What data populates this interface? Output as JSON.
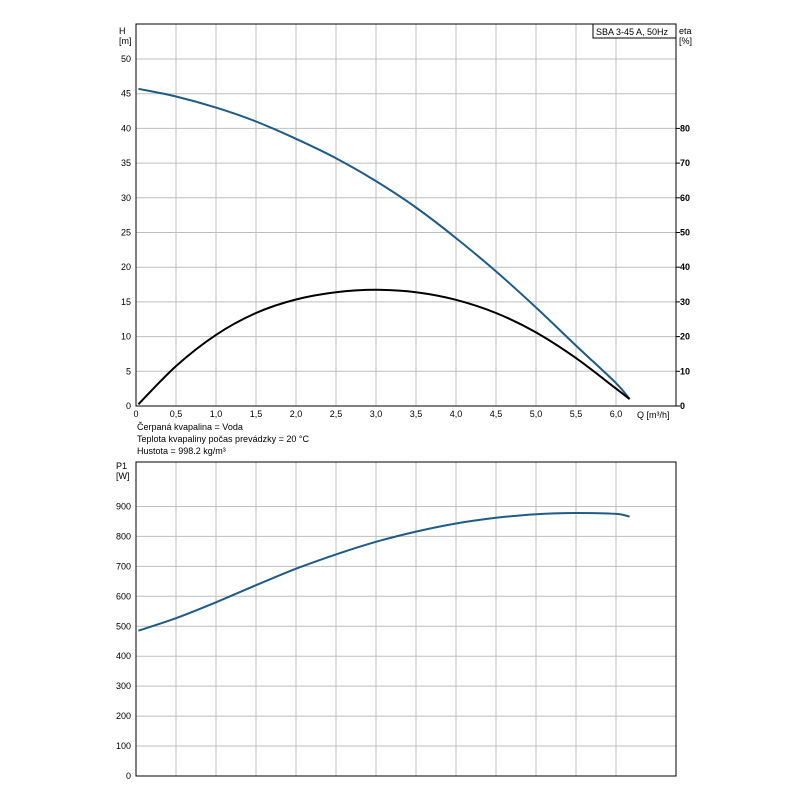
{
  "chart_data": [
    {
      "type": "line",
      "legend_box": "SBA 3-45 A, 50Hz",
      "xlabel": "Q [m³/h]",
      "ylabel_left": {
        "name": "H",
        "unit": "[m]"
      },
      "ylabel_right": {
        "name": "eta",
        "unit": "[%]"
      },
      "xlim": [
        0,
        6.75
      ],
      "ylim_left": [
        0,
        52
      ],
      "ylim_right": [
        0,
        90
      ],
      "x_ticks": [
        "0",
        "0,5",
        "1,0",
        "1,5",
        "2,0",
        "2,5",
        "3,0",
        "3,5",
        "4,0",
        "4,5",
        "5,0",
        "5,5",
        "6,0"
      ],
      "y_ticks_left": [
        "0",
        "5",
        "10",
        "15",
        "20",
        "25",
        "30",
        "35",
        "40",
        "45",
        "50"
      ],
      "y_ticks_right": [
        "0",
        "10",
        "20",
        "30",
        "40",
        "50",
        "60",
        "70",
        "80"
      ],
      "grid": true,
      "series": [
        {
          "axis": "left",
          "color": "#1f5b87",
          "x": [
            0.03,
            0.5,
            1.0,
            1.5,
            2.0,
            2.5,
            3.0,
            3.5,
            4.0,
            4.5,
            5.0,
            5.5,
            6.0,
            6.17
          ],
          "y": [
            45.7,
            44.6,
            43.0,
            41.0,
            38.5,
            35.7,
            32.4,
            28.6,
            24.2,
            19.4,
            14.2,
            8.7,
            3.3,
            1.0
          ]
        },
        {
          "axis": "right",
          "color": "#000000",
          "x": [
            0.03,
            0.5,
            1.0,
            1.5,
            2.0,
            2.5,
            3.0,
            3.5,
            4.0,
            4.5,
            5.0,
            5.5,
            6.0,
            6.17
          ],
          "y": [
            0.5,
            11.5,
            20.5,
            26.8,
            30.7,
            32.8,
            33.5,
            32.8,
            30.6,
            26.8,
            21.2,
            13.8,
            5.0,
            2.0
          ]
        }
      ]
    },
    {
      "type": "line",
      "ylabel_left": {
        "name": "P1",
        "unit": "[W]"
      },
      "xlim": [
        0,
        6.75
      ],
      "ylim_left": [
        0,
        1000
      ],
      "y_ticks_left": [
        "0",
        "100",
        "200",
        "300",
        "400",
        "500",
        "600",
        "700",
        "800",
        "900"
      ],
      "grid": true,
      "series": [
        {
          "axis": "left",
          "color": "#1f5b87",
          "x": [
            0.03,
            0.5,
            1.0,
            1.5,
            2.0,
            2.5,
            3.0,
            3.5,
            4.0,
            4.5,
            5.0,
            5.5,
            6.0,
            6.17
          ],
          "y": [
            485,
            527,
            580,
            637,
            692,
            740,
            782,
            816,
            843,
            862,
            874,
            878,
            875,
            866
          ]
        }
      ]
    }
  ],
  "notes": [
    "Čerpaná kvapalina = Voda",
    "Teplota kvapaliny počas prevádzky = 20 °C",
    "Hustota = 998.2 kg/m³"
  ]
}
